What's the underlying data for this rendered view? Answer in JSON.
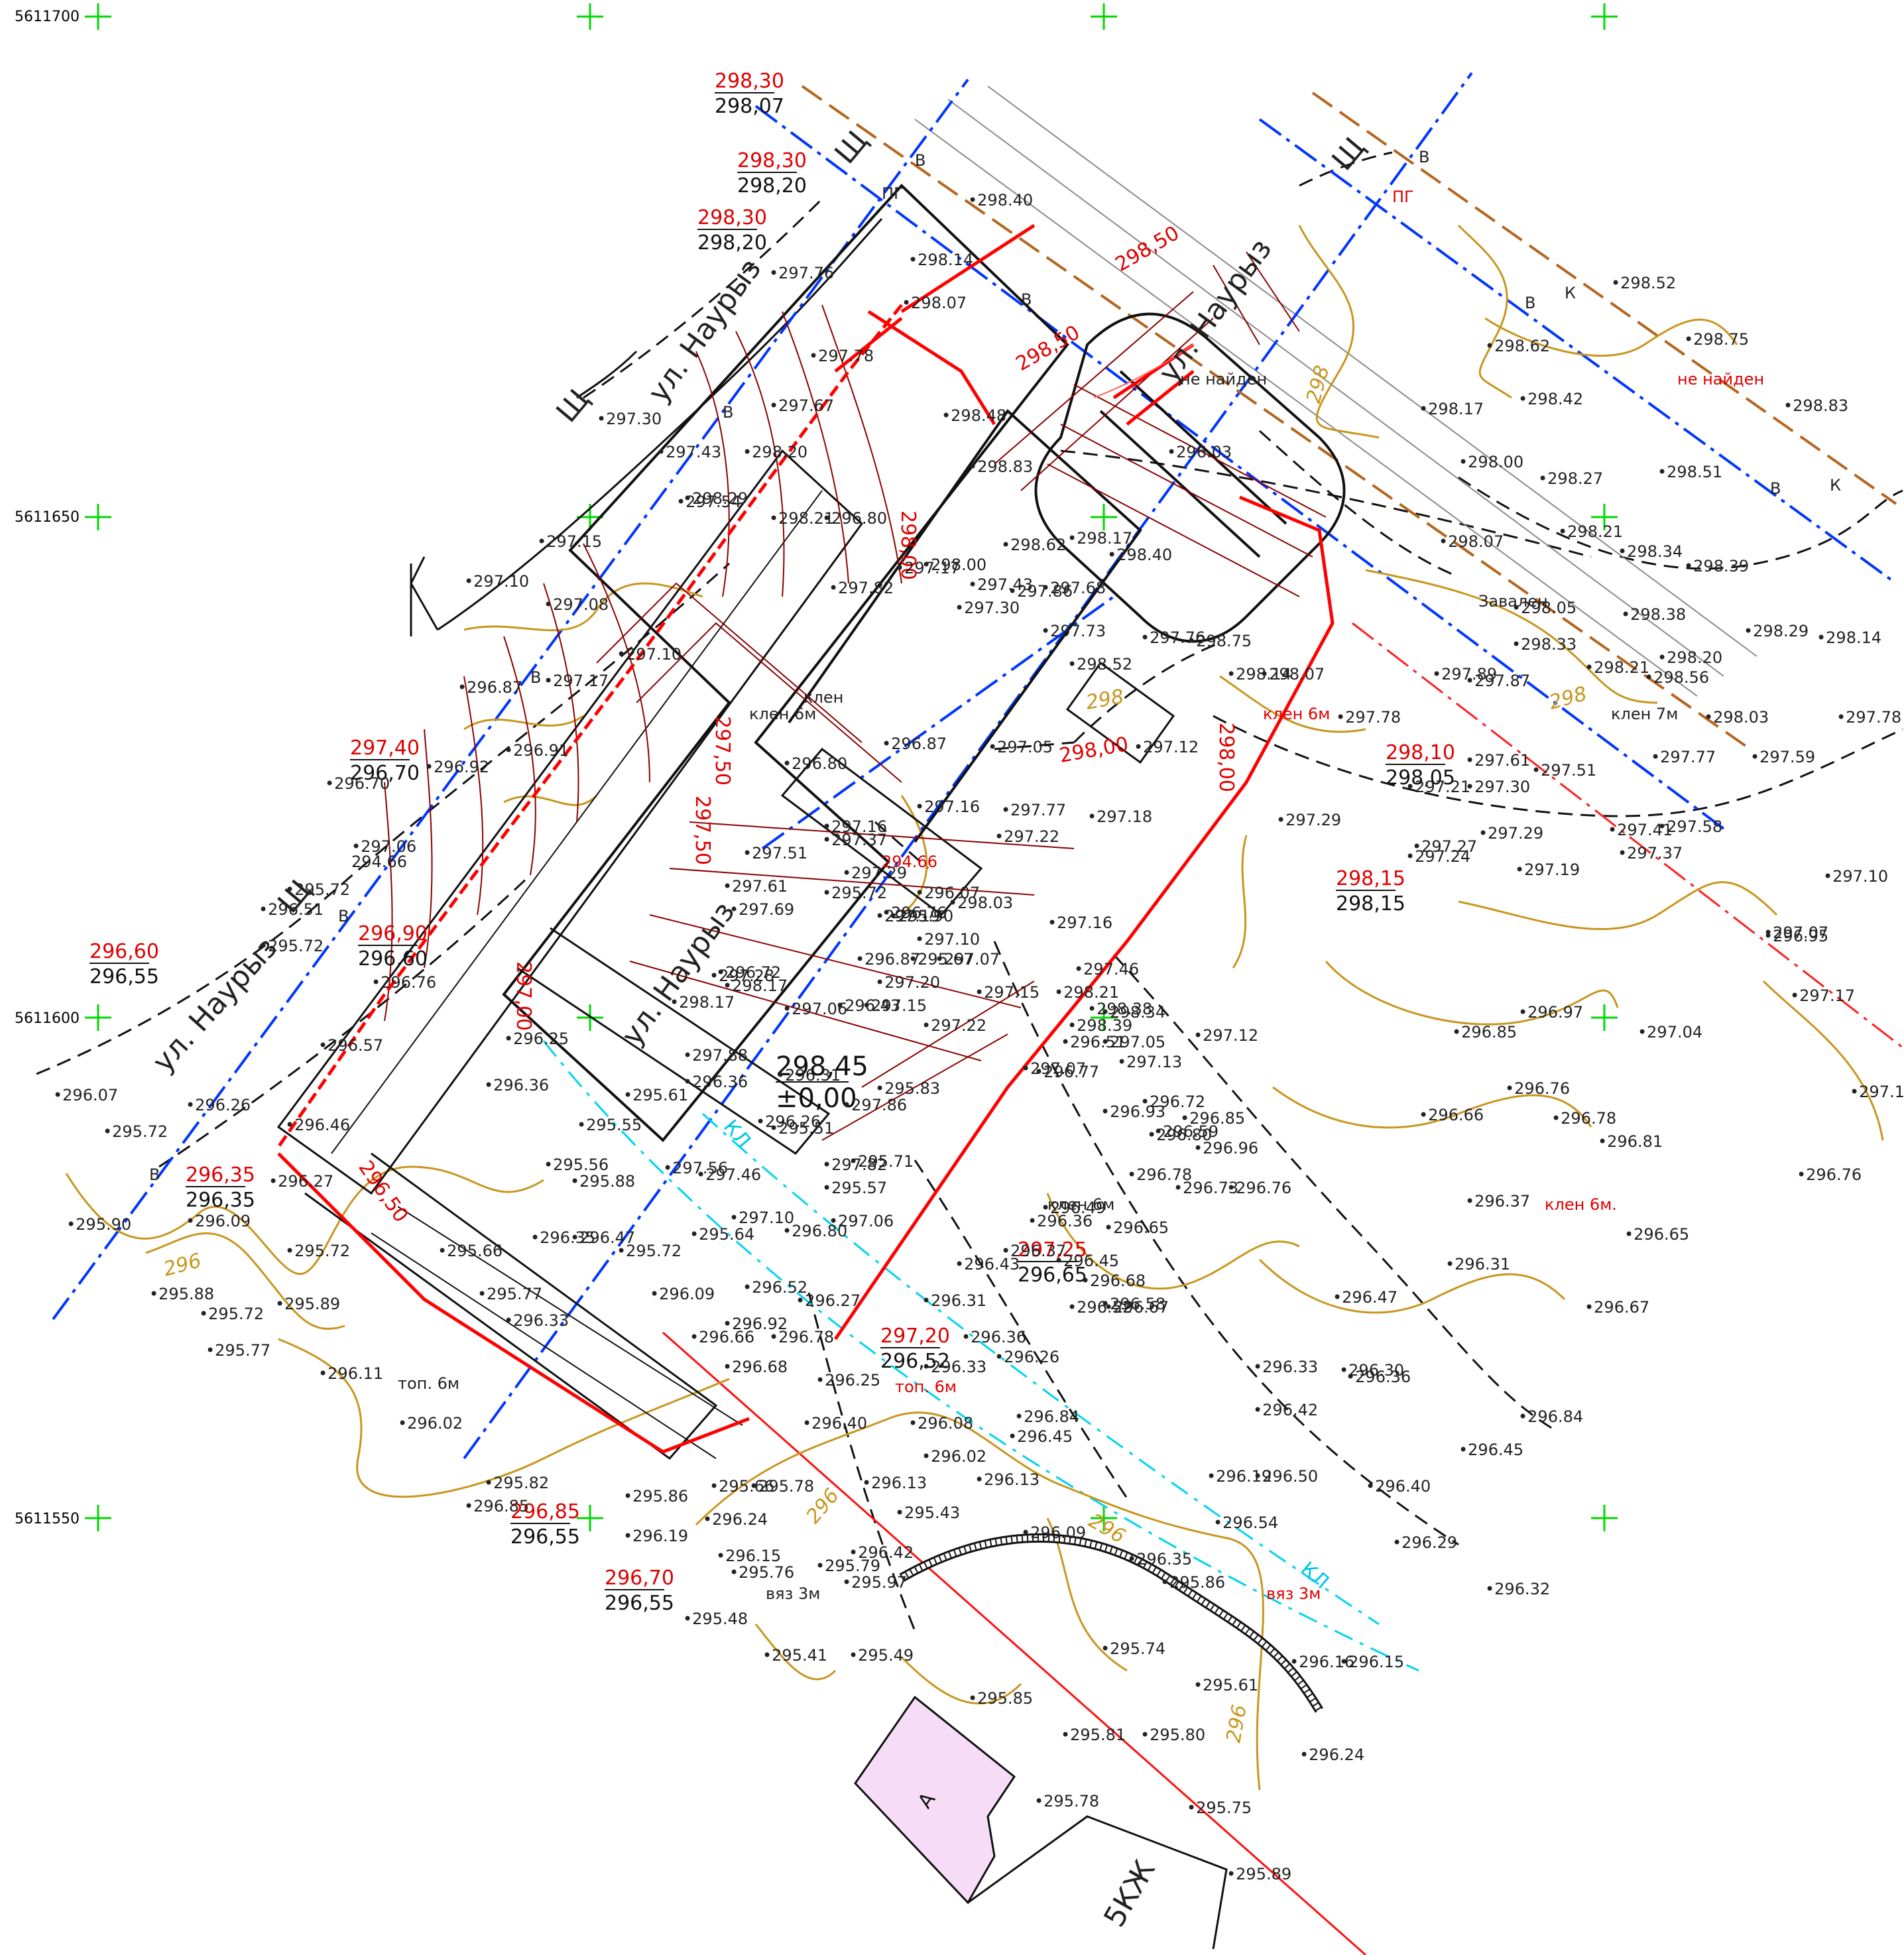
{
  "grid": {
    "labels": [
      "5611700",
      "5611650",
      "5611600",
      "5611550"
    ]
  },
  "streets": [
    "ул. Наурыз",
    "ул. Наурыз",
    "ул. Наурыз",
    "ул. Наурыз"
  ],
  "utilities": {
    "gas_marker": "Щ",
    "water_marker": "В",
    "sewer_marker": "К",
    "cable_marker": "КЛ",
    "hydrant": "ПГ"
  },
  "design_marks": [
    {
      "red": "298,30",
      "black": "298,07"
    },
    {
      "red": "298,30",
      "black": "298,20"
    },
    {
      "red": "298,30",
      "black": "298,20"
    },
    {
      "red": "297,40",
      "black": "296,70"
    },
    {
      "red": "296,60",
      "black": "296,55"
    },
    {
      "red": "296,90",
      "black": "296,60"
    },
    {
      "red": "296,35",
      "black": "296,35"
    },
    {
      "red": "296,85",
      "black": "296,55"
    },
    {
      "red": "296,70",
      "black": "296,55"
    },
    {
      "red": "297,20",
      "black": "296,52"
    },
    {
      "red": "297,25",
      "black": "296,65"
    },
    {
      "red": "298,10",
      "black": "298,05"
    },
    {
      "red": "298,15",
      "black": "298,15"
    }
  ],
  "building": {
    "elevation": "298,45",
    "zero": "±0,00",
    "roof_marks": [
      "298,50",
      "298,50",
      "298,00",
      "298,00",
      "297,50",
      "297,50",
      "297,00",
      "296,50",
      "298,00"
    ]
  },
  "contours": [
    "296",
    "296",
    "296",
    "296",
    "298",
    "298",
    "298"
  ],
  "spot_heights": [
    {
      "v": "298.40"
    },
    {
      "v": "298.14"
    },
    {
      "v": "298.07"
    },
    {
      "v": "297.76"
    },
    {
      "v": "297.78"
    },
    {
      "v": "297.67"
    },
    {
      "v": "297.30"
    },
    {
      "v": "297.43"
    },
    {
      "v": "297.54"
    },
    {
      "v": "297.15"
    },
    {
      "v": "297.10"
    },
    {
      "v": "297.08"
    },
    {
      "v": "297.10"
    },
    {
      "v": "297.17"
    },
    {
      "v": "296.87"
    },
    {
      "v": "296.91"
    },
    {
      "v": "296.92"
    },
    {
      "v": "296.70"
    },
    {
      "v": "297.06"
    },
    {
      "v": "295.72"
    },
    {
      "v": "296.51"
    },
    {
      "v": "295.72"
    },
    {
      "v": "296.76"
    },
    {
      "v": "296.57"
    },
    {
      "v": "296.07"
    },
    {
      "v": "296.26"
    },
    {
      "v": "295.72"
    },
    {
      "v": "296.46"
    },
    {
      "v": "296.27"
    },
    {
      "v": "296.09"
    },
    {
      "v": "295.90"
    },
    {
      "v": "295.72"
    },
    {
      "v": "295.88"
    },
    {
      "v": "295.72"
    },
    {
      "v": "295.89"
    },
    {
      "v": "295.77"
    },
    {
      "v": "296.11"
    },
    {
      "v": "296.02"
    },
    {
      "v": "295.82"
    },
    {
      "v": "296.85"
    },
    {
      "v": "298.52"
    },
    {
      "v": "298.75"
    },
    {
      "v": "298.62"
    },
    {
      "v": "298.42"
    },
    {
      "v": "298.17"
    },
    {
      "v": "298.83"
    },
    {
      "v": "298.00"
    },
    {
      "v": "298.27"
    },
    {
      "v": "298.51"
    },
    {
      "v": "298.21"
    },
    {
      "v": "298.34"
    },
    {
      "v": "298.39"
    },
    {
      "v": "298.07"
    },
    {
      "v": "298.05"
    },
    {
      "v": "298.38"
    },
    {
      "v": "298.29"
    },
    {
      "v": "298.14"
    },
    {
      "v": "298.33"
    },
    {
      "v": "298.20"
    },
    {
      "v": "298.21"
    },
    {
      "v": "298.56"
    },
    {
      "v": "298.03"
    },
    {
      "v": "297.78"
    },
    {
      "v": "297.89"
    },
    {
      "v": "297.87"
    },
    {
      "v": "297.78"
    },
    {
      "v": "297.61"
    },
    {
      "v": "297.51"
    },
    {
      "v": "297.77"
    },
    {
      "v": "297.59"
    },
    {
      "v": "297.21"
    },
    {
      "v": "297.30"
    },
    {
      "v": "297.29"
    },
    {
      "v": "297.29"
    },
    {
      "v": "297.41"
    },
    {
      "v": "297.58"
    },
    {
      "v": "297.37"
    },
    {
      "v": "297.27"
    },
    {
      "v": "297.24"
    },
    {
      "v": "297.19"
    },
    {
      "v": "297.10"
    },
    {
      "v": "297.07"
    },
    {
      "v": "296.95"
    },
    {
      "v": "297.17"
    },
    {
      "v": "297.04"
    },
    {
      "v": "296.97"
    },
    {
      "v": "296.85"
    },
    {
      "v": "296.76"
    },
    {
      "v": "297.17"
    },
    {
      "v": "296.66"
    },
    {
      "v": "296.78"
    },
    {
      "v": "296.81"
    },
    {
      "v": "296.76"
    },
    {
      "v": "296.37"
    },
    {
      "v": "296.65"
    },
    {
      "v": "296.31"
    },
    {
      "v": "296.67"
    },
    {
      "v": "296.47"
    },
    {
      "v": "296.36"
    },
    {
      "v": "296.30"
    },
    {
      "v": "296.33"
    },
    {
      "v": "296.84"
    },
    {
      "v": "296.45"
    },
    {
      "v": "296.40"
    },
    {
      "v": "296.42"
    },
    {
      "v": "296.29"
    },
    {
      "v": "296.32"
    },
    {
      "v": "296.50"
    },
    {
      "v": "296.54"
    },
    {
      "v": "296.19"
    },
    {
      "v": "296.16"
    },
    {
      "v": "296.15"
    },
    {
      "v": "296.24"
    },
    {
      "v": "296.35"
    },
    {
      "v": "295.86"
    },
    {
      "v": "296.09"
    },
    {
      "v": "295.74"
    },
    {
      "v": "295.61"
    },
    {
      "v": "295.80"
    },
    {
      "v": "295.81"
    },
    {
      "v": "295.85"
    },
    {
      "v": "295.75"
    },
    {
      "v": "295.89"
    },
    {
      "v": "295.78"
    },
    {
      "v": "295.97"
    },
    {
      "v": "295.43"
    },
    {
      "v": "295.49"
    },
    {
      "v": "295.41"
    },
    {
      "v": "295.48"
    },
    {
      "v": "295.76"
    },
    {
      "v": "295.79"
    },
    {
      "v": "296.42"
    },
    {
      "v": "296.15"
    },
    {
      "v": "296.24"
    },
    {
      "v": "296.19"
    },
    {
      "v": "295.86"
    },
    {
      "v": "295.66"
    },
    {
      "v": "295.78"
    },
    {
      "v": "296.13"
    },
    {
      "v": "296.40"
    },
    {
      "v": "296.08"
    },
    {
      "v": "296.02"
    },
    {
      "v": "296.45"
    },
    {
      "v": "296.84"
    },
    {
      "v": "296.13"
    },
    {
      "v": "296.25"
    },
    {
      "v": "296.33"
    },
    {
      "v": "296.26"
    },
    {
      "v": "296.36"
    },
    {
      "v": "296.31"
    },
    {
      "v": "296.43"
    },
    {
      "v": "296.37"
    },
    {
      "v": "296.36"
    },
    {
      "v": "296.49"
    },
    {
      "v": "296.65"
    },
    {
      "v": "296.45"
    },
    {
      "v": "296.58"
    },
    {
      "v": "296.67"
    },
    {
      "v": "296.52"
    },
    {
      "v": "296.68"
    },
    {
      "v": "296.73"
    },
    {
      "v": "296.59"
    },
    {
      "v": "296.78"
    },
    {
      "v": "296.77"
    },
    {
      "v": "296.80"
    },
    {
      "v": "296.85"
    },
    {
      "v": "296.96"
    },
    {
      "v": "296.76"
    },
    {
      "v": "296.93"
    },
    {
      "v": "296.72"
    },
    {
      "v": "297.13"
    },
    {
      "v": "297.12"
    },
    {
      "v": "297.05"
    },
    {
      "v": "297.07"
    },
    {
      "v": "296.51"
    },
    {
      "v": "297.22"
    },
    {
      "v": "297.15"
    },
    {
      "v": "297.07"
    },
    {
      "v": "297.20"
    },
    {
      "v": "296.87"
    },
    {
      "v": "297.19"
    },
    {
      "v": "297.37"
    },
    {
      "v": "297.29"
    },
    {
      "v": "297.06"
    },
    {
      "v": "297.28"
    },
    {
      "v": "297.69"
    },
    {
      "v": "297.61"
    },
    {
      "v": "297.51"
    },
    {
      "v": "297.16"
    },
    {
      "v": "297.77"
    },
    {
      "v": "297.16"
    },
    {
      "v": "297.22"
    },
    {
      "v": "297.18"
    },
    {
      "v": "297.05"
    },
    {
      "v": "297.12"
    },
    {
      "v": "296.87"
    },
    {
      "v": "296.80"
    },
    {
      "v": "296.76"
    },
    {
      "v": "296.07"
    },
    {
      "v": "295.72"
    },
    {
      "v": "295.90"
    },
    {
      "v": "296.43"
    },
    {
      "v": "296.72"
    },
    {
      "v": "296.31"
    },
    {
      "v": "296.36"
    },
    {
      "v": "295.83"
    },
    {
      "v": "295.67"
    },
    {
      "v": "296.25"
    },
    {
      "v": "296.36"
    },
    {
      "v": "295.55"
    },
    {
      "v": "295.61"
    },
    {
      "v": "296.26"
    },
    {
      "v": "295.71"
    },
    {
      "v": "295.51"
    },
    {
      "v": "295.56"
    },
    {
      "v": "295.88"
    },
    {
      "v": "296.35"
    },
    {
      "v": "295.64"
    },
    {
      "v": "295.57"
    },
    {
      "v": "295.66"
    },
    {
      "v": "295.77"
    },
    {
      "v": "296.33"
    },
    {
      "v": "296.47"
    },
    {
      "v": "295.72"
    },
    {
      "v": "296.09"
    },
    {
      "v": "296.52"
    },
    {
      "v": "296.27"
    },
    {
      "v": "296.68"
    },
    {
      "v": "296.66"
    },
    {
      "v": "296.78"
    },
    {
      "v": "296.92"
    },
    {
      "v": "296.80"
    },
    {
      "v": "297.06"
    },
    {
      "v": "297.10"
    },
    {
      "v": "297.46"
    },
    {
      "v": "297.56"
    },
    {
      "v": "297.82"
    },
    {
      "v": "297.86"
    },
    {
      "v": "297.88"
    },
    {
      "v": "298.17"
    },
    {
      "v": "298.17"
    },
    {
      "v": "297.10"
    },
    {
      "v": "298.03"
    },
    {
      "v": "297.15"
    },
    {
      "v": "298.21"
    },
    {
      "v": "298.38"
    },
    {
      "v": "298.34"
    },
    {
      "v": "298.39"
    },
    {
      "v": "297.46"
    },
    {
      "v": "297.16"
    },
    {
      "v": "298.29"
    },
    {
      "v": "298.20"
    },
    {
      "v": "298.21"
    },
    {
      "v": "296.80"
    },
    {
      "v": "297.17"
    },
    {
      "v": "298.00"
    },
    {
      "v": "297.30"
    },
    {
      "v": "297.43"
    },
    {
      "v": "297.82"
    },
    {
      "v": "297.86"
    },
    {
      "v": "297.68"
    },
    {
      "v": "297.73"
    },
    {
      "v": "297.76"
    },
    {
      "v": "298.52"
    },
    {
      "v": "298.75"
    },
    {
      "v": "298.62"
    },
    {
      "v": "298.17"
    },
    {
      "v": "298.40"
    },
    {
      "v": "298.14"
    },
    {
      "v": "298.07"
    },
    {
      "v": "298.83"
    },
    {
      "v": "298.48"
    },
    {
      "v": "296.03"
    }
  ],
  "trees": [
    {
      "label": "клен 6м"
    },
    {
      "label": "клен 6м"
    },
    {
      "label": "клен 6м"
    },
    {
      "label": "клен 6м."
    },
    {
      "label": "клен 7м"
    },
    {
      "label": "топ. 6м"
    },
    {
      "label": "топ. 6м"
    },
    {
      "label": "вяз 3м"
    },
    {
      "label": "вяз 3м"
    },
    {
      "label": "клен"
    }
  ],
  "notes": [
    "не найден",
    "не найден",
    "Завален"
  ],
  "sheet_label": "5КЖ",
  "block_label": "А",
  "ground_marks": [
    "294.66",
    "294.66",
    "294.66"
  ]
}
